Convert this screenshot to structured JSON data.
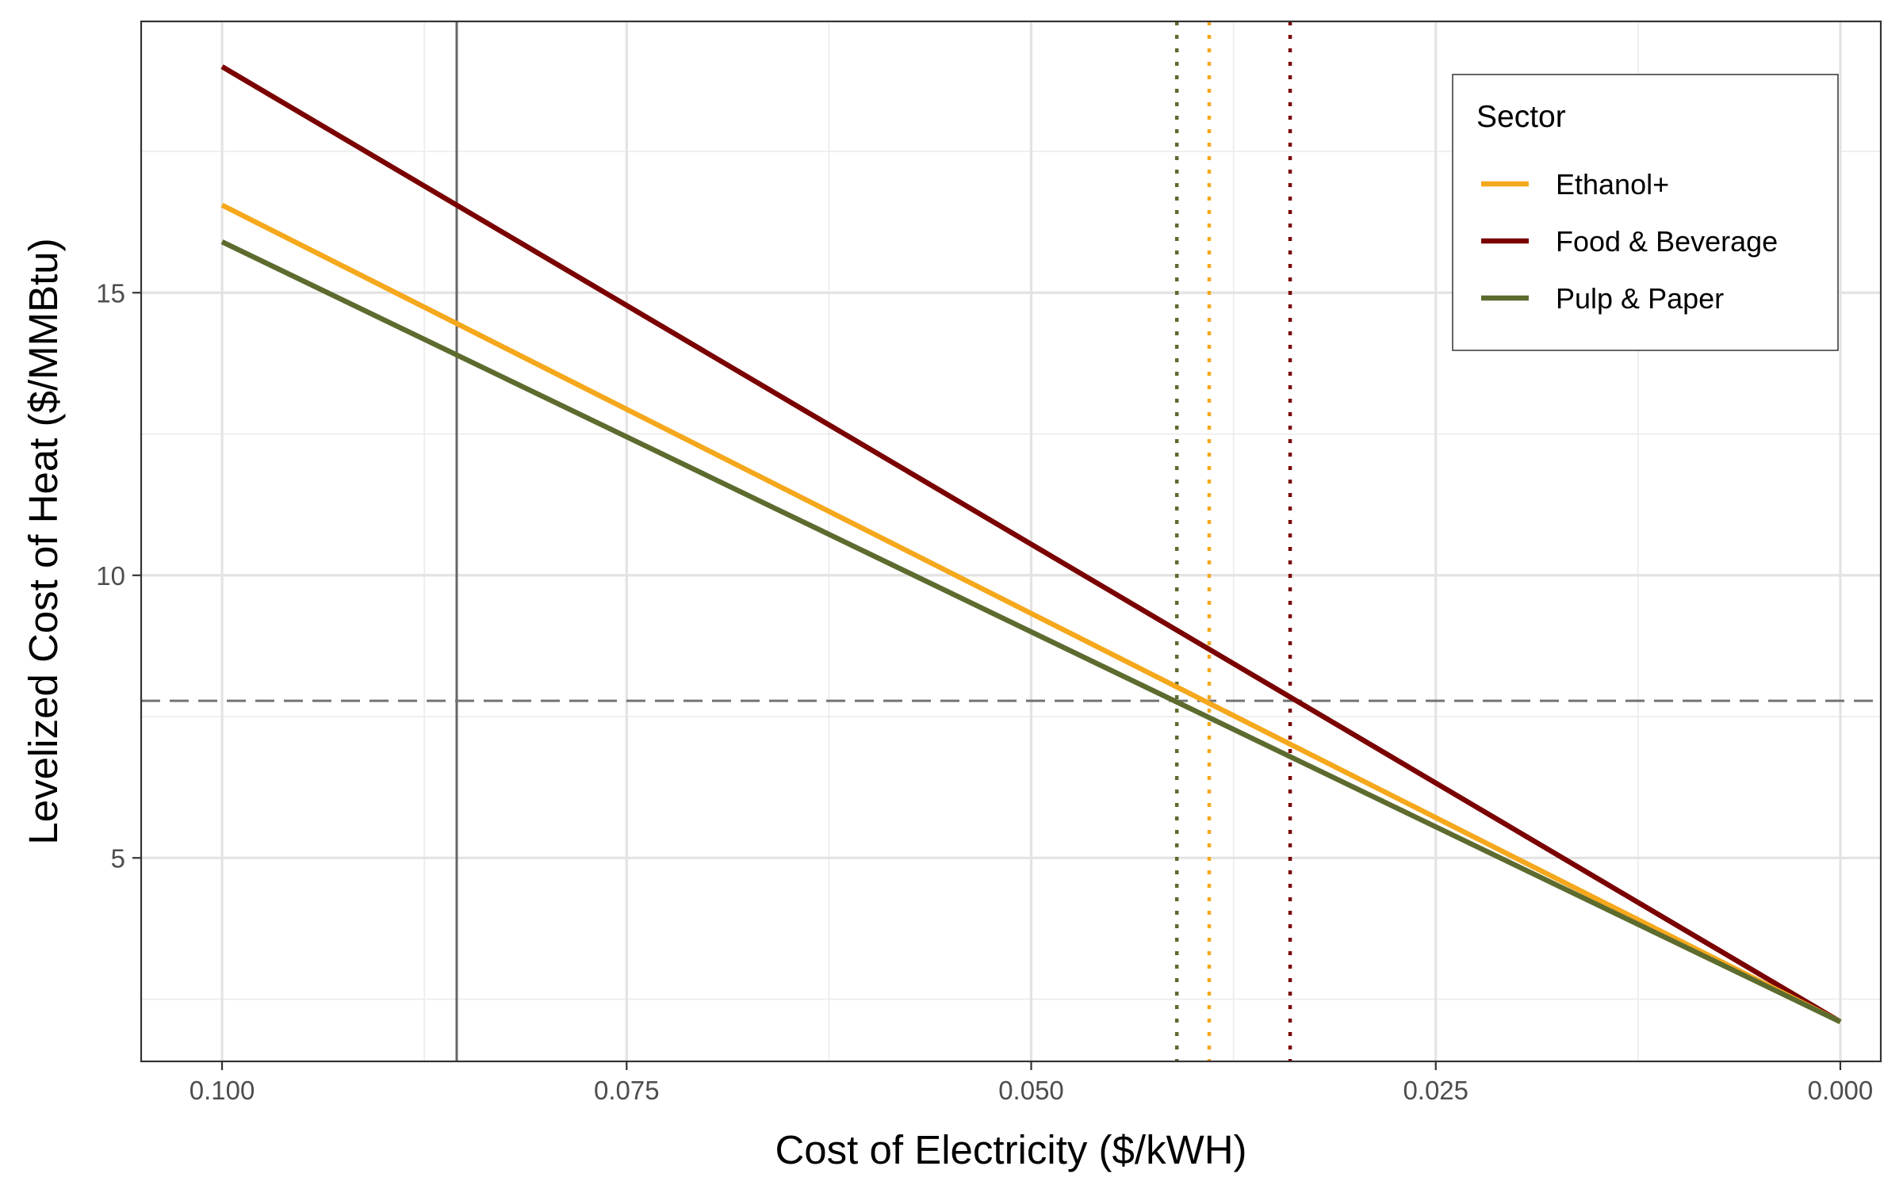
{
  "chart_data": {
    "type": "line",
    "title": "",
    "xlabel": "Cost of Electricity ($/kWH)",
    "ylabel": "Levelized Cost of Heat ($/MMBtu)",
    "x_reversed": true,
    "xlim": [
      0.105,
      -0.0025
    ],
    "ylim": [
      1.4,
      19.8
    ],
    "x_ticks": [
      0.1,
      0.075,
      0.05,
      0.025,
      0.0
    ],
    "x_tick_labels": [
      "0.100",
      "0.075",
      "0.050",
      "0.025",
      "0.000"
    ],
    "y_ticks": [
      5,
      10,
      15
    ],
    "y_tick_labels": [
      "5",
      "10",
      "15"
    ],
    "x_minor_ticks": [
      0.0875,
      0.0625,
      0.0375,
      0.0125
    ],
    "y_minor_ticks": [
      2.5,
      7.5,
      12.5,
      17.5
    ],
    "grid": true,
    "legend": {
      "title": "Sector",
      "position": "top-right",
      "entries": [
        "Ethanol+",
        "Food & Beverage",
        "Pulp & Paper"
      ]
    },
    "series": [
      {
        "name": "Ethanol+",
        "color": "#F5A81C",
        "x": [
          0.1,
          0.0
        ],
        "y": [
          16.55,
          2.1
        ]
      },
      {
        "name": "Food & Beverage",
        "color": "#7A0000",
        "x": [
          0.1,
          0.0
        ],
        "y": [
          19.0,
          2.1
        ]
      },
      {
        "name": "Pulp & Paper",
        "color": "#5C6B2E",
        "x": [
          0.1,
          0.0
        ],
        "y": [
          15.9,
          2.1
        ]
      }
    ],
    "reference_lines": [
      {
        "type": "vertical",
        "x": 0.0855,
        "style": "solid",
        "color": "#666666"
      },
      {
        "type": "horizontal",
        "y": 7.78,
        "style": "dashed",
        "color": "#737373"
      },
      {
        "type": "vertical",
        "x": 0.041,
        "style": "dotted",
        "color": "#5C6B2E"
      },
      {
        "type": "vertical",
        "x": 0.039,
        "style": "dotted",
        "color": "#F5A81C"
      },
      {
        "type": "vertical",
        "x": 0.034,
        "style": "dotted",
        "color": "#7A0000"
      }
    ]
  }
}
